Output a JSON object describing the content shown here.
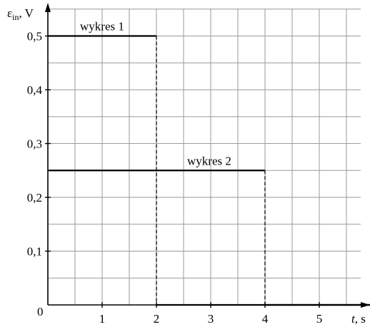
{
  "chart_data": {
    "type": "line",
    "ylabel": {
      "symbol": "ε",
      "subscript": "in",
      "unit": ", V"
    },
    "xlabel": {
      "symbol": "t",
      "unit": ", s"
    },
    "origin_label": "0",
    "x_ticks": [
      {
        "value": 1,
        "label": "1"
      },
      {
        "value": 2,
        "label": "2"
      },
      {
        "value": 3,
        "label": "3"
      },
      {
        "value": 4,
        "label": "4"
      },
      {
        "value": 5,
        "label": "5"
      }
    ],
    "y_ticks": [
      {
        "value": 0.1,
        "label": "0,1"
      },
      {
        "value": 0.2,
        "label": "0,2"
      },
      {
        "value": 0.3,
        "label": "0,3"
      },
      {
        "value": 0.4,
        "label": "0,4"
      },
      {
        "value": 0.5,
        "label": "0,5"
      }
    ],
    "xlim": [
      0,
      6
    ],
    "ylim": [
      0,
      0.55
    ],
    "grid": true,
    "grid_step": {
      "x": 0.5,
      "y": 0.05
    },
    "series": [
      {
        "name": "wykres 1",
        "points": [
          [
            0,
            0.5
          ],
          [
            2,
            0.5
          ],
          [
            2,
            0
          ],
          [
            6,
            0
          ]
        ]
      },
      {
        "name": "wykres 2",
        "points": [
          [
            0,
            0.25
          ],
          [
            4,
            0.25
          ],
          [
            4,
            0
          ],
          [
            6,
            0
          ]
        ]
      }
    ]
  }
}
